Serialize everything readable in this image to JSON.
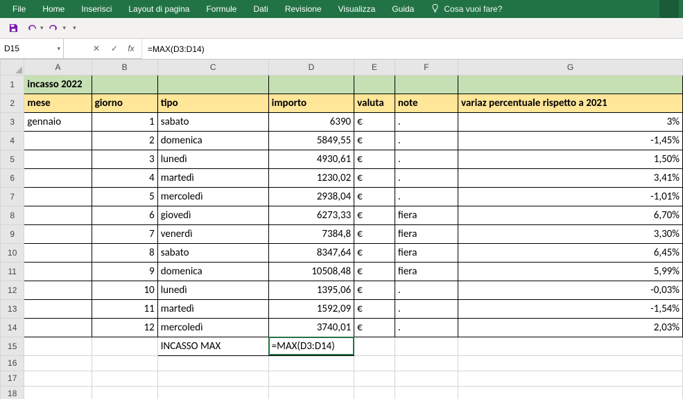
{
  "ribbon": {
    "tabs": [
      "File",
      "Home",
      "Inserisci",
      "Layout di pagina",
      "Formule",
      "Dati",
      "Revisione",
      "Visualizza",
      "Guida"
    ],
    "search_placeholder": "Cosa vuoi fare?"
  },
  "qat": {
    "save_icon": "save-icon",
    "undo_icon": "undo-icon",
    "redo_icon": "redo-icon"
  },
  "formula_bar": {
    "name_box": "D15",
    "cancel": "✕",
    "confirm": "✓",
    "fx": "fx",
    "formula": "=MAX(D3:D14)"
  },
  "columns": [
    "A",
    "B",
    "C",
    "D",
    "E",
    "F",
    "G"
  ],
  "title_row": {
    "a": "incasso 2022"
  },
  "header_row": {
    "a": "mese",
    "b": "giorno",
    "c": "tipo",
    "d": "importo",
    "e": "valuta",
    "f": "note",
    "g": "variaz percentuale rispetto a 2021"
  },
  "rows": [
    {
      "r": 3,
      "a": "gennaio",
      "b": "1",
      "c": "sabato",
      "d": "6390",
      "e": "€",
      "f": ".",
      "g": "3%"
    },
    {
      "r": 4,
      "a": "",
      "b": "2",
      "c": "domenica",
      "d": "5849,55",
      "e": "€",
      "f": ".",
      "g": "-1,45%"
    },
    {
      "r": 5,
      "a": "",
      "b": "3",
      "c": "lunedì",
      "d": "4930,61",
      "e": "€",
      "f": ".",
      "g": "1,50%"
    },
    {
      "r": 6,
      "a": "",
      "b": "4",
      "c": "martedì",
      "d": "1230,02",
      "e": "€",
      "f": ".",
      "g": "3,41%"
    },
    {
      "r": 7,
      "a": "",
      "b": "5",
      "c": "mercoledì",
      "d": "2938,04",
      "e": "€",
      "f": ".",
      "g": "-1,01%"
    },
    {
      "r": 8,
      "a": "",
      "b": "6",
      "c": "giovedì",
      "d": "6273,33",
      "e": "€",
      "f": "fiera",
      "g": "6,70%"
    },
    {
      "r": 9,
      "a": "",
      "b": "7",
      "c": "venerdì",
      "d": "7384,8",
      "e": "€",
      "f": "fiera",
      "g": "3,30%"
    },
    {
      "r": 10,
      "a": "",
      "b": "8",
      "c": "sabato",
      "d": "8347,64",
      "e": "€",
      "f": "fiera",
      "g": "6,45%"
    },
    {
      "r": 11,
      "a": "",
      "b": "9",
      "c": "domenica",
      "d": "10508,48",
      "e": "€",
      "f": "fiera",
      "g": "5,99%"
    },
    {
      "r": 12,
      "a": "",
      "b": "10",
      "c": "lunedì",
      "d": "1395,06",
      "e": "€",
      "f": ".",
      "g": "-0,03%"
    },
    {
      "r": 13,
      "a": "",
      "b": "11",
      "c": "martedì",
      "d": "1592,09",
      "e": "€",
      "f": ".",
      "g": "-1,54%"
    },
    {
      "r": 14,
      "a": "",
      "b": "12",
      "c": "mercoledì",
      "d": "3740,01",
      "e": "€",
      "f": ".",
      "g": "2,03%"
    }
  ],
  "summary_row": {
    "r": 15,
    "c": "INCASSO MAX",
    "d": "=MAX(D3:D14)"
  },
  "colors": {
    "ribbon_bg": "#217346",
    "header_green": "#c6e0b4",
    "header_yellow": "#ffe699",
    "gridline": "#d4d4d4",
    "data_border": "#000000"
  }
}
